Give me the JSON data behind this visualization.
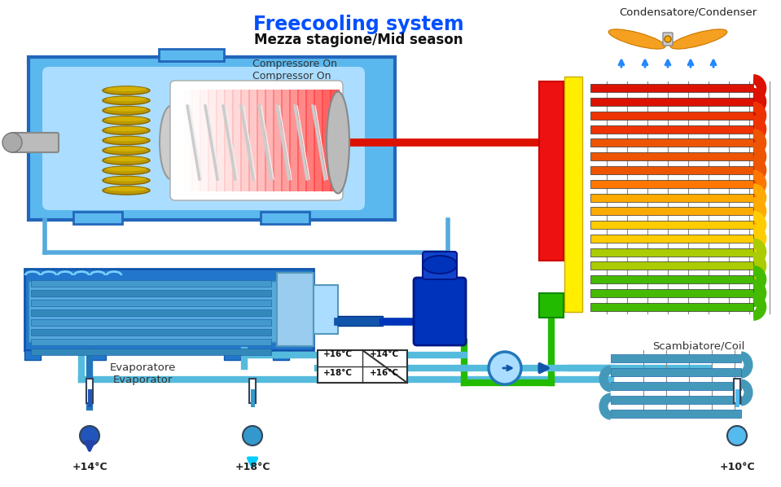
{
  "title": "Freecooling system",
  "subtitle": "Mezza stagione/Mid season",
  "title_color": "#0050FF",
  "subtitle_color": "#111111",
  "bg_color": "#FFFFFF",
  "label_compressor": "Compressore On\nCompressor On",
  "label_condenser": "Condensatore/Condenser",
  "label_evaporator": "Evaporatore\nEvaporator",
  "label_coil": "Scambiatore/Coil",
  "temp_14_left": "+14°C",
  "temp_18_center": "+18°C",
  "temp_10_right": "+10°C",
  "temp_16_top_L": "+16°C",
  "temp_14_top_R": "+14°C",
  "temp_18_bot_L": "+18°C",
  "temp_16_bot_R": "+16°C"
}
